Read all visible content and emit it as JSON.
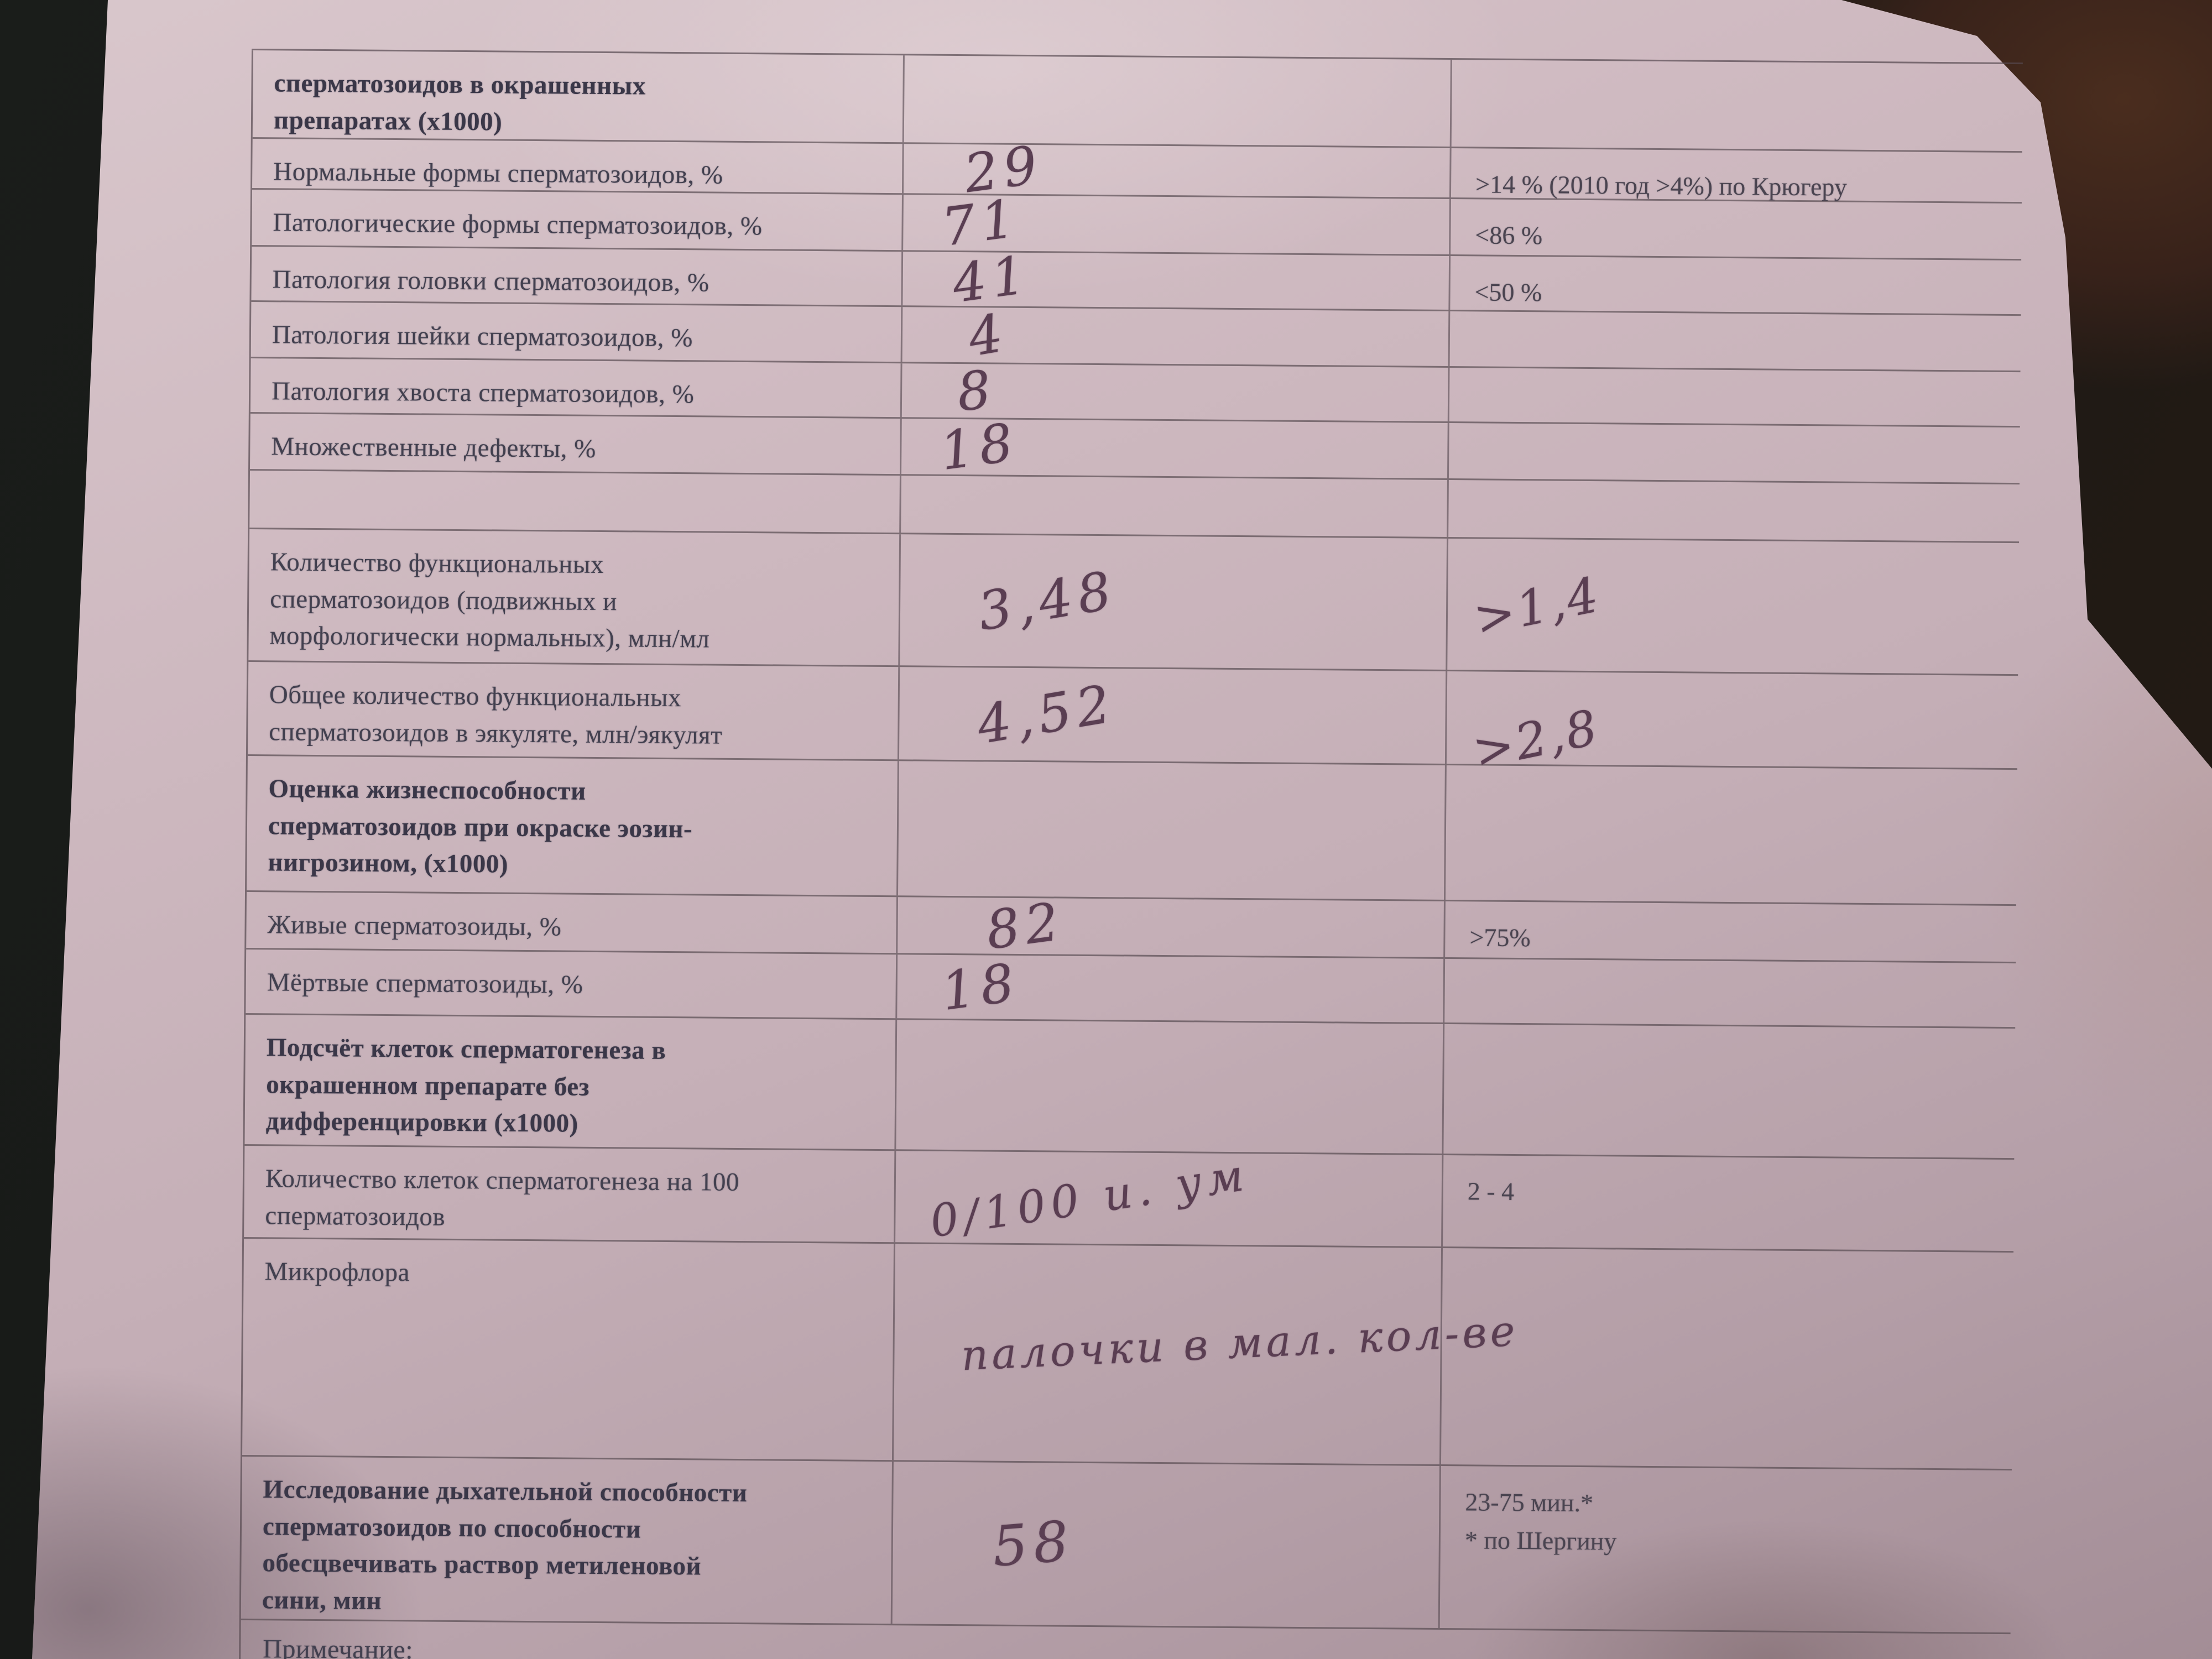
{
  "colors": {
    "paper": "#cfbac1",
    "ink_printed": "#42404f",
    "ink_pen": "#5a3e52",
    "table_line": "#55494f",
    "backdrop_dark": "#191b19",
    "backdrop_brown": "#3f2719"
  },
  "table": {
    "rows": [
      {
        "label": "сперматозоидов в окрашенных\nпрепаратах (х1000)",
        "value": "",
        "ref": "",
        "bold": true
      },
      {
        "label": "Нормальные формы сперматозоидов, %",
        "value": "29",
        "ref": ">14 % (2010 год >4%) по Крюгеру"
      },
      {
        "label": "Патологические формы сперматозоидов, %",
        "value": "71",
        "ref": "<86 %"
      },
      {
        "label": "Патология головки сперматозоидов, %",
        "value": "41",
        "ref": "<50 %"
      },
      {
        "label": "Патология шейки сперматозоидов, %",
        "value": "4",
        "ref": ""
      },
      {
        "label": "Патология хвоста сперматозоидов, %",
        "value": "8",
        "ref": ""
      },
      {
        "label": "Множественные дефекты, %",
        "value": "18",
        "ref": ""
      },
      {
        "label": "",
        "value": "",
        "ref": ""
      },
      {
        "label": "Количество функциональных\nсперматозоидов (подвижных и\nморфологически нормальных), млн/мл",
        "value": "3,48",
        "ref": ">1,4",
        "ref_hw": true
      },
      {
        "label": "Общее количество функциональных\nсперматозоидов в эякуляте, млн/эякулят",
        "value": "4,52",
        "ref": ">2,8",
        "ref_hw": true
      },
      {
        "label": "Оценка жизнеспособности\nсперматозоидов при  окраске эозин-\nнигрозином, (х1000)",
        "value": "",
        "ref": "",
        "bold": true
      },
      {
        "label": "Живые сперматозоиды, %",
        "value": "82",
        "ref": ">75%"
      },
      {
        "label": "Мёртвые сперматозоиды, %",
        "value": "18",
        "ref": ""
      },
      {
        "label": "Подсчёт клеток сперматогенеза в\nокрашенном препарате без\nдифференцировки (х1000)",
        "value": "",
        "ref": "",
        "bold": true
      },
      {
        "label": "Количество клеток сперматогенеза на 100\nсперматозоидов",
        "value": "0/100 и. ум",
        "ref": "2 - 4"
      },
      {
        "label": "Микрофлора",
        "value": "палочки  в мал. кол-ве",
        "ref": ""
      },
      {
        "label": "Исследование дыхательной способности\nсперматозоидов по способности\nобесцвечивать раствор метиленовой\nсини, мин",
        "value": "58",
        "ref": "23-75 мин.*\n* по Шергину",
        "bold": true
      }
    ]
  },
  "note_label": "Примечание:"
}
